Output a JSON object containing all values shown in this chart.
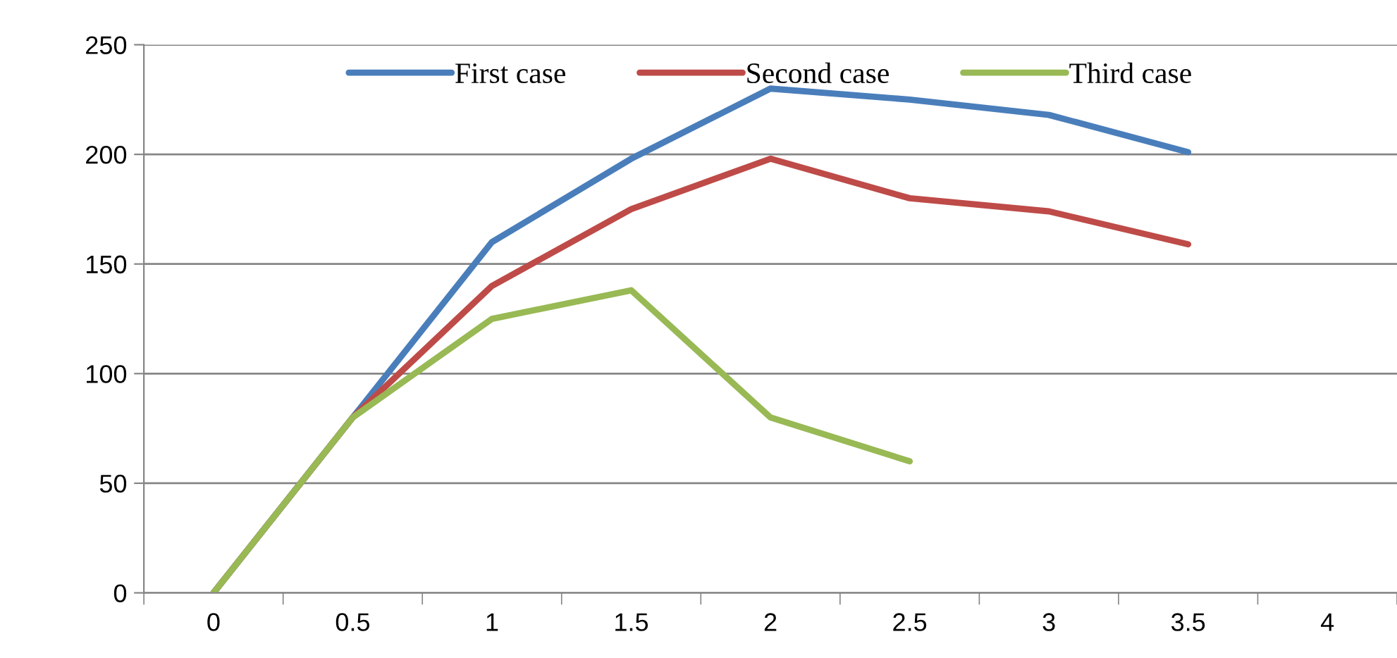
{
  "chart_data": {
    "type": "line",
    "categories": [
      "0",
      "0.5",
      "1",
      "1.5",
      "2",
      "2.5",
      "3",
      "3.5",
      "4"
    ],
    "series": [
      {
        "name": "First case",
        "color": "#4a7ebb",
        "values": [
          0,
          80,
          160,
          198,
          230,
          225,
          218,
          201,
          null
        ]
      },
      {
        "name": "Second case",
        "color": "#be4b48",
        "values": [
          0,
          80,
          140,
          175,
          198,
          180,
          174,
          159,
          null
        ]
      },
      {
        "name": "Third case",
        "color": "#98b954",
        "values": [
          0,
          80,
          125,
          138,
          80,
          60,
          null,
          null,
          null
        ]
      }
    ],
    "ylim": [
      0,
      250
    ],
    "yticks": [
      0,
      50,
      100,
      150,
      200,
      250
    ],
    "grid": "y",
    "legend": "top",
    "marker": "none",
    "line_style": "solid"
  }
}
